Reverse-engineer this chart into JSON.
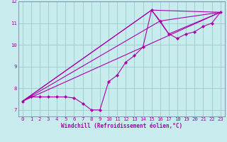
{
  "xlabel": "Windchill (Refroidissement éolien,°C)",
  "bg_color": "#c8ecee",
  "line_color": "#aa00aa",
  "grid_color": "#99cccc",
  "xlim": [
    -0.5,
    23.5
  ],
  "ylim": [
    6.7,
    12.0
  ],
  "xticks": [
    0,
    1,
    2,
    3,
    4,
    5,
    6,
    7,
    8,
    9,
    10,
    11,
    12,
    13,
    14,
    15,
    16,
    17,
    18,
    19,
    20,
    21,
    22,
    23
  ],
  "yticks": [
    7,
    8,
    9,
    10,
    11,
    12
  ],
  "main_x": [
    0,
    1,
    2,
    3,
    4,
    5,
    6,
    7,
    8,
    9,
    10,
    11,
    12,
    13,
    14,
    15,
    16,
    17,
    18,
    19,
    20,
    21,
    22,
    23
  ],
  "main_y": [
    7.4,
    7.6,
    7.6,
    7.6,
    7.6,
    7.6,
    7.55,
    7.3,
    7.0,
    7.0,
    8.3,
    8.6,
    9.2,
    9.5,
    9.9,
    11.6,
    11.1,
    10.5,
    10.3,
    10.5,
    10.6,
    10.85,
    11.0,
    11.5
  ],
  "line2_x": [
    0,
    15,
    23
  ],
  "line2_y": [
    7.4,
    11.6,
    11.5
  ],
  "line3_x": [
    0,
    23
  ],
  "line3_y": [
    7.4,
    11.5
  ],
  "line4_x": [
    0,
    16,
    23
  ],
  "line4_y": [
    7.4,
    11.1,
    11.5
  ],
  "line5_x": [
    0,
    15,
    17,
    23
  ],
  "line5_y": [
    7.4,
    11.6,
    10.5,
    11.5
  ],
  "xlabel_fontsize": 5.5,
  "tick_fontsize": 5.2,
  "lw": 0.8,
  "ms": 2.2
}
